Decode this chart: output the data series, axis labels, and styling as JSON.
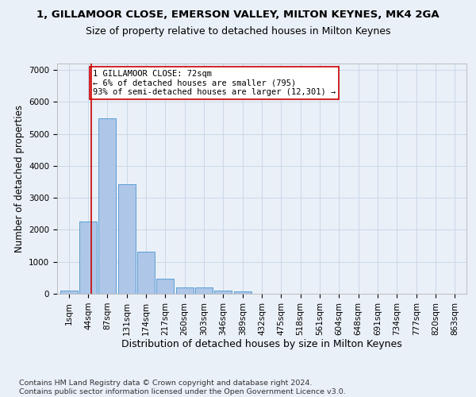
{
  "title": "1, GILLAMOOR CLOSE, EMERSON VALLEY, MILTON KEYNES, MK4 2GA",
  "subtitle": "Size of property relative to detached houses in Milton Keynes",
  "xlabel": "Distribution of detached houses by size in Milton Keynes",
  "ylabel": "Number of detached properties",
  "footer_line1": "Contains HM Land Registry data © Crown copyright and database right 2024.",
  "footer_line2": "Contains public sector information licensed under the Open Government Licence v3.0.",
  "bar_labels": [
    "1sqm",
    "44sqm",
    "87sqm",
    "131sqm",
    "174sqm",
    "217sqm",
    "260sqm",
    "303sqm",
    "346sqm",
    "389sqm",
    "432sqm",
    "475sqm",
    "518sqm",
    "561sqm",
    "604sqm",
    "648sqm",
    "691sqm",
    "734sqm",
    "777sqm",
    "820sqm",
    "863sqm"
  ],
  "bar_values": [
    100,
    2270,
    5480,
    3430,
    1310,
    460,
    195,
    190,
    90,
    75,
    0,
    0,
    0,
    0,
    0,
    0,
    0,
    0,
    0,
    0,
    0
  ],
  "bar_color": "#aec6e8",
  "bar_edgecolor": "#5a9fd4",
  "grid_color": "#c8d8e8",
  "background_color": "#eaf0f8",
  "vline_color": "#cc0000",
  "annotation_text": "1 GILLAMOOR CLOSE: 72sqm\n← 6% of detached houses are smaller (795)\n93% of semi-detached houses are larger (12,301) →",
  "annotation_box_color": "#ffffff",
  "annotation_box_edge": "#cc0000",
  "ylim": [
    0,
    7200
  ],
  "yticks": [
    0,
    1000,
    2000,
    3000,
    4000,
    5000,
    6000,
    7000
  ],
  "title_fontsize": 9.5,
  "subtitle_fontsize": 9,
  "xlabel_fontsize": 9,
  "ylabel_fontsize": 8.5,
  "tick_fontsize": 7.5,
  "footer_fontsize": 6.8,
  "annot_fontsize": 7.5
}
